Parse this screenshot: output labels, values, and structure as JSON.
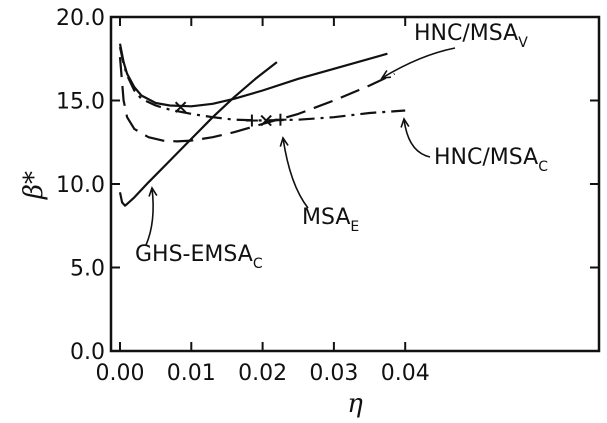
{
  "chart_data": {
    "type": "line",
    "xlabel": "η",
    "ylabel": "β*",
    "xlim": [
      0.0,
      0.045
    ],
    "ylim": [
      0.0,
      20.0
    ],
    "xticks": [
      0.0,
      0.01,
      0.02,
      0.03,
      0.04
    ],
    "xtick_labels": [
      "0.00",
      "0.01",
      "0.02",
      "0.03",
      "0.04"
    ],
    "yticks": [
      0.0,
      5.0,
      10.0,
      15.0,
      20.0
    ],
    "ytick_labels": [
      "0.0",
      "5.0",
      "10.0",
      "15.0",
      "20.0"
    ],
    "grid": false,
    "series": [
      {
        "name": "HNC/MSA_V",
        "style": "solid",
        "x": [
          0.0,
          0.0005,
          0.001,
          0.002,
          0.003,
          0.005,
          0.007,
          0.01,
          0.013,
          0.016,
          0.02,
          0.025,
          0.03,
          0.0375
        ],
        "y": [
          18.4,
          17.3,
          16.6,
          15.8,
          15.3,
          14.85,
          14.7,
          14.65,
          14.8,
          15.1,
          15.6,
          16.3,
          16.9,
          17.8
        ]
      },
      {
        "name": "MSA_E",
        "style": "dashed",
        "x": [
          0.0,
          0.0005,
          0.001,
          0.002,
          0.004,
          0.006,
          0.008,
          0.01,
          0.013,
          0.016,
          0.02,
          0.025,
          0.03,
          0.035,
          0.0385
        ],
        "y": [
          17.6,
          15.0,
          14.0,
          13.3,
          12.8,
          12.6,
          12.55,
          12.6,
          12.8,
          13.1,
          13.6,
          14.2,
          15.0,
          15.9,
          16.6
        ]
      },
      {
        "name": "HNC/MSA_C",
        "style": "dashdot",
        "x": [
          0.0,
          0.0005,
          0.001,
          0.002,
          0.003,
          0.005,
          0.007,
          0.01,
          0.013,
          0.016,
          0.02,
          0.025,
          0.03,
          0.035,
          0.04
        ],
        "y": [
          18.2,
          17.2,
          16.5,
          15.6,
          15.1,
          14.7,
          14.45,
          14.2,
          14.0,
          13.85,
          13.8,
          13.85,
          14.0,
          14.25,
          14.4
        ]
      },
      {
        "name": "GHS-EMSA_C",
        "style": "solid",
        "x": [
          0.0,
          0.0003,
          0.0007,
          0.001,
          0.002,
          0.004,
          0.007,
          0.01,
          0.013,
          0.016,
          0.019,
          0.022
        ],
        "y": [
          9.5,
          8.9,
          8.7,
          8.8,
          9.2,
          10.1,
          11.4,
          12.7,
          14.0,
          15.2,
          16.3,
          17.3
        ]
      }
    ],
    "markers": [
      {
        "type": "x",
        "x": 0.0085,
        "y": 14.6
      },
      {
        "type": "x",
        "x": 0.0205,
        "y": 13.8
      },
      {
        "type": "plus",
        "x": 0.0185,
        "y": 13.8
      },
      {
        "type": "plus",
        "x": 0.0225,
        "y": 13.85
      }
    ],
    "annotations": [
      {
        "text": "HNC/MSA",
        "sub": "V",
        "target": [
          0.0244,
          16.1
        ]
      },
      {
        "text": "HNC/MSA",
        "sub": "C",
        "target": [
          0.0265,
          13.8
        ]
      },
      {
        "text": "MSA",
        "sub": "E",
        "target": [
          0.0162,
          13.0
        ]
      },
      {
        "text": "GHS-EMSA",
        "sub": "C",
        "target": [
          0.0018,
          9.3
        ]
      }
    ]
  }
}
